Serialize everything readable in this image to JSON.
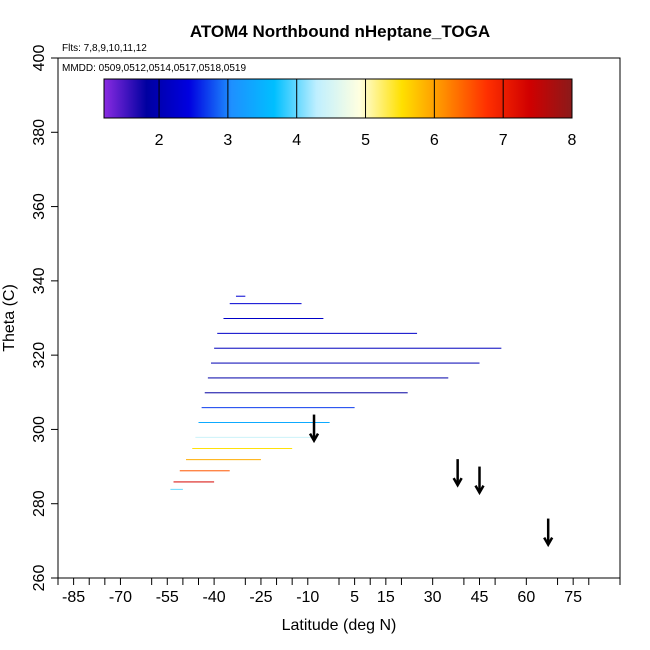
{
  "chart_data": {
    "type": "heatmap",
    "title": "ATOM4 Northbound nHeptane_TOGA",
    "flights_label": "Flts: 7,8,9,10,11,12",
    "mmdd_label": "MMDD: 0509,0512,0514,0517,0518,0519",
    "xlabel": "Latitude (deg N)",
    "ylabel": "Theta (C)",
    "xlim": [
      -90,
      90
    ],
    "ylim": [
      260,
      400
    ],
    "x_ticks": [
      -85,
      -70,
      -55,
      -40,
      -25,
      -10,
      5,
      15,
      30,
      45,
      60,
      75
    ],
    "x_tick_labels": [
      "-85",
      "-70",
      "-55",
      "-40",
      "-25",
      "-10",
      "5",
      "15",
      "30",
      "45",
      "60",
      "75"
    ],
    "y_ticks": [
      260,
      280,
      300,
      320,
      340,
      360,
      380,
      400
    ],
    "y_tick_labels": [
      "260",
      "280",
      "300",
      "320",
      "340",
      "360",
      "380",
      "400"
    ],
    "colorbar": {
      "range": [
        1.2,
        8
      ],
      "ticks": [
        2,
        3,
        4,
        5,
        6,
        7,
        8
      ],
      "tick_labels": [
        "2",
        "3",
        "4",
        "5",
        "6",
        "7",
        "8"
      ],
      "colors": [
        "#8a2be2",
        "#0000a0",
        "#0000e0",
        "#1e90ff",
        "#00bfff",
        "#bfefff",
        "#ffffe0",
        "#ffe000",
        "#ff8c00",
        "#ff3000",
        "#d00000",
        "#8b1a1a"
      ]
    },
    "contour_bands": [
      {
        "theta_bottom": 338,
        "theta_top": 336,
        "lat_start": -33,
        "lat_end": -30,
        "value": 2.3
      },
      {
        "theta_bottom": 336,
        "theta_top": 334,
        "lat_start": -35,
        "lat_end": -12,
        "value": 2.3
      },
      {
        "theta_bottom": 334,
        "theta_top": 330,
        "lat_start": -37,
        "lat_end": -5,
        "value": 2.2
      },
      {
        "theta_bottom": 330,
        "theta_top": 326,
        "lat_start": -39,
        "lat_end": 25,
        "value": 2.2
      },
      {
        "theta_bottom": 326,
        "theta_top": 322,
        "lat_start": -40,
        "lat_end": 52,
        "value": 2.1
      },
      {
        "theta_bottom": 322,
        "theta_top": 318,
        "lat_start": -41,
        "lat_end": 45,
        "value": 2.0
      },
      {
        "theta_bottom": 318,
        "theta_top": 314,
        "lat_start": -42,
        "lat_end": 35,
        "value": 1.9
      },
      {
        "theta_bottom": 314,
        "theta_top": 310,
        "lat_start": -43,
        "lat_end": 22,
        "value": 1.8
      },
      {
        "theta_bottom": 310,
        "theta_top": 306,
        "lat_start": -44,
        "lat_end": 5,
        "value": 2.7
      },
      {
        "theta_bottom": 306,
        "theta_top": 302,
        "lat_start": -45,
        "lat_end": -3,
        "value": 3.4
      },
      {
        "theta_bottom": 302,
        "theta_top": 298,
        "lat_start": -46,
        "lat_end": -8,
        "value": 4.4
      },
      {
        "theta_bottom": 298,
        "theta_top": 295,
        "lat_start": -47,
        "lat_end": -15,
        "value": 5.5
      },
      {
        "theta_bottom": 295,
        "theta_top": 292,
        "lat_start": -49,
        "lat_end": -25,
        "value": 5.9
      },
      {
        "theta_bottom": 292,
        "theta_top": 289,
        "lat_start": -51,
        "lat_end": -35,
        "value": 6.5
      },
      {
        "theta_bottom": 289,
        "theta_top": 286,
        "lat_start": -53,
        "lat_end": -40,
        "value": 7.3
      },
      {
        "theta_bottom": 286,
        "theta_top": 284,
        "lat_start": -54,
        "lat_end": -50,
        "value": 4.0
      }
    ],
    "arrows": [
      {
        "lat": -8,
        "theta": 304,
        "theta_end": 297
      },
      {
        "lat": 38,
        "theta": 292,
        "theta_end": 285
      },
      {
        "lat": 45,
        "theta": 290,
        "theta_end": 283
      },
      {
        "lat": 67,
        "theta": 276,
        "theta_end": 269
      }
    ]
  }
}
